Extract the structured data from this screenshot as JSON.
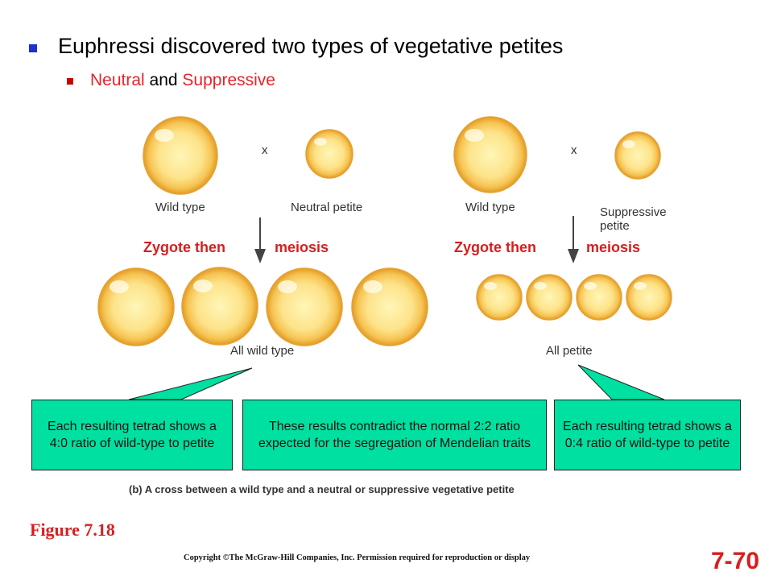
{
  "bullets": {
    "main": "Euphressi discovered two types of vegetative petites",
    "sub_part1": "Neutral",
    "sub_and": " and ",
    "sub_part2": "Suppressive"
  },
  "left_cross": {
    "times": "x",
    "parent1_label": "Wild type",
    "parent2_label": "Neutral petite",
    "process_left": "Zygote then",
    "process_right": "meiosis",
    "result_label": "All wild type"
  },
  "right_cross": {
    "times": "x",
    "parent1_label": "Wild type",
    "parent2_label_line1": "Suppressive",
    "parent2_label_line2": "petite",
    "process_left": "Zygote then",
    "process_right": "meiosis",
    "result_label": "All petite"
  },
  "callouts": {
    "left": "Each resulting tetrad shows a 4:0 ratio of wild-type to petite",
    "middle": "These results contradict the normal 2:2 ratio expected for the segregation of Mendelian traits",
    "right": "Each resulting tetrad shows a 0:4 ratio of wild-type to petite"
  },
  "caption": "(b) A cross between a wild type and a neutral or suppressive vegetative petite",
  "figure_label": "Figure 7.18",
  "copyright": "Copyright ©The McGraw-Hill Companies, Inc. Permission required for reproduction or display",
  "slide_number": "7-70",
  "colors": {
    "cell_core": "#fff6b8",
    "cell_mid": "#f8cf60",
    "cell_edge": "#e29a22",
    "highlight_red": "#d81e1e",
    "callout_fill": "#00e0a0",
    "bullet_blue": "#1f2fd6"
  }
}
